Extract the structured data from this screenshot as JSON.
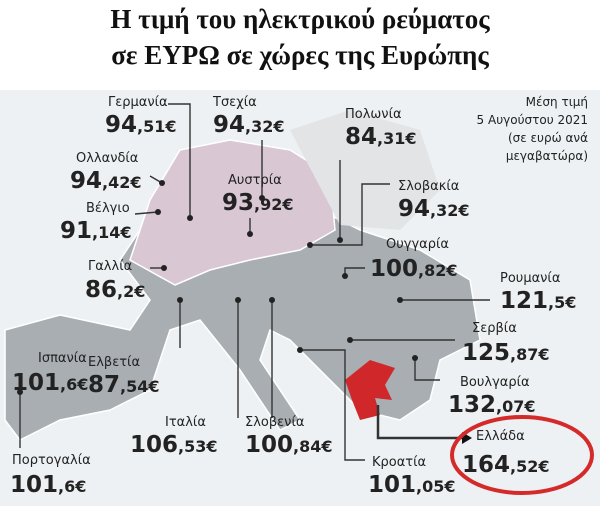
{
  "header": {
    "title_lines": [
      "Η τιμή του ηλεκτρικού ρεύματος",
      "σε ΕΥΡΩ σε χώρες της Ευρώπης"
    ]
  },
  "note": {
    "lines": [
      "Μέση τιμή",
      "5 Αυγούστου 2021",
      "(σε ευρώ ανά",
      "μεγαβατώρα)"
    ]
  },
  "countries": [
    {
      "name": "Γερμανία",
      "price_whole": "94",
      "price_rest": ",51€"
    },
    {
      "name": "Τσεχία",
      "price_whole": "94",
      "price_rest": ",32€"
    },
    {
      "name": "Πολωνία",
      "price_whole": "84",
      "price_rest": ",31€"
    },
    {
      "name": "Ολλανδία",
      "price_whole": "94",
      "price_rest": ",42€"
    },
    {
      "name": "Βέλγιο",
      "price_whole": "91",
      "price_rest": ",14€"
    },
    {
      "name": "Αυστρία",
      "price_whole": "93",
      "price_rest": ",92€"
    },
    {
      "name": "Σλοβακία",
      "price_whole": "94",
      "price_rest": ",32€"
    },
    {
      "name": "Ουγγαρία",
      "price_whole": "100",
      "price_rest": ",82€"
    },
    {
      "name": "Γαλλία",
      "price_whole": "86",
      "price_rest": ",2€"
    },
    {
      "name": "Ρουμανία",
      "price_whole": "121",
      "price_rest": ",5€"
    },
    {
      "name": "Σερβία",
      "price_whole": "125",
      "price_rest": ",87€"
    },
    {
      "name": "Ελβετία",
      "price_whole": "87",
      "price_rest": ",54€"
    },
    {
      "name": "Ισπανία",
      "price_whole": "101",
      "price_rest": ",6€"
    },
    {
      "name": "Βουλγαρία",
      "price_whole": "132",
      "price_rest": ",07€"
    },
    {
      "name": "Ιταλία",
      "price_whole": "106",
      "price_rest": ",53€"
    },
    {
      "name": "Σλοβενία",
      "price_whole": "100",
      "price_rest": ",84€"
    },
    {
      "name": "Ελλάδα",
      "price_whole": "164",
      "price_rest": ",52€"
    },
    {
      "name": "Κροατία",
      "price_whole": "101",
      "price_rest": ",05€"
    },
    {
      "name": "Πορτογαλία",
      "price_whole": "101",
      "price_rest": ",6€"
    }
  ]
}
